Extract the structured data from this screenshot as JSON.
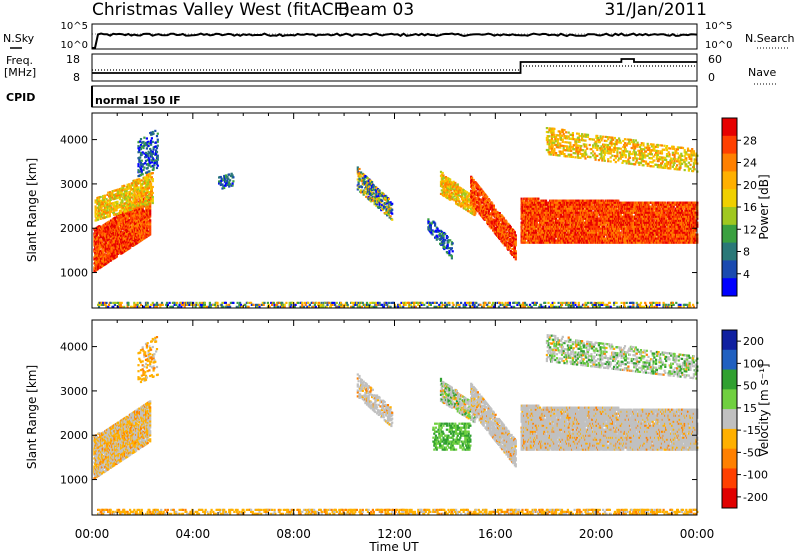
{
  "header": {
    "title": "Christmas Valley West (fitACF)",
    "beam": "Beam 03",
    "date": "31/Jan/2011"
  },
  "top_panels": {
    "nsky_label": "N.Sky",
    "nsearch_label": "N.Search",
    "nsky_ticks": [
      "10^5",
      "10^0"
    ],
    "nsearch_ticks": [
      "10^5",
      "10^0"
    ],
    "freq_label": "Freq.",
    "freq_unit": "[MHz]",
    "freq_ticks": [
      "18",
      "8"
    ],
    "nave_label": "Nave",
    "nave_ticks": [
      "60",
      "0"
    ],
    "cpid_label": "CPID",
    "cpid_value": "normal 150 IF"
  },
  "chart_data": [
    {
      "type": "heatmap",
      "name": "Power panel",
      "xlabel": "",
      "ylabel": "Slant Range [km]",
      "x_range_hours": [
        0,
        24
      ],
      "ylim": [
        200,
        4600
      ],
      "y_ticks": [
        1000,
        2000,
        3000,
        4000
      ],
      "colorbar": {
        "label": "Power [dB]",
        "ticks": [
          "28",
          "24",
          "20",
          "16",
          "12",
          "8",
          "4"
        ],
        "colors": [
          "#e60000",
          "#ff4000",
          "#ff8000",
          "#ffb000",
          "#f0d000",
          "#a0c820",
          "#3aa040",
          "#2a7878",
          "#1a4ab0",
          "#0000ff"
        ]
      }
    },
    {
      "type": "heatmap",
      "name": "Velocity panel",
      "xlabel": "Time UT",
      "ylabel": "Slant Range [km]",
      "x_range_hours": [
        0,
        24
      ],
      "ylim": [
        200,
        4600
      ],
      "y_ticks": [
        1000,
        2000,
        3000,
        4000
      ],
      "x_ticks": [
        "00:00",
        "04:00",
        "08:00",
        "12:00",
        "16:00",
        "20:00",
        "00:00"
      ],
      "colorbar": {
        "label": "Velocity [m s⁻¹]",
        "ticks": [
          "200",
          "100",
          "50",
          "15",
          "-15",
          "-50",
          "-100",
          "-200"
        ],
        "colors": [
          "#1020a0",
          "#2060c0",
          "#30a030",
          "#70d040",
          "#c0c0c0",
          "#ffb000",
          "#ff8000",
          "#ff4000",
          "#e00000"
        ]
      }
    }
  ]
}
